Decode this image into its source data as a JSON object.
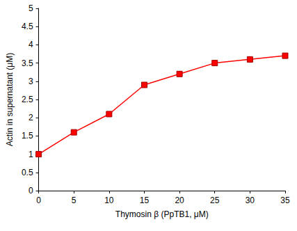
{
  "chart_data": {
    "type": "line",
    "x_label": "Thymosin β (PpTB1, μM)",
    "y_label": "Actin in supernatant (μM)",
    "x": [
      0,
      5,
      10,
      15,
      20,
      25,
      30,
      35
    ],
    "values": [
      1.0,
      1.6,
      2.1,
      2.9,
      3.2,
      3.5,
      3.6,
      3.7
    ],
    "color": "#ff0000",
    "marker": "square",
    "line_style": "solid",
    "xlim": [
      0,
      35
    ],
    "xticks": [
      0,
      5,
      10,
      15,
      20,
      25,
      30,
      35
    ],
    "ylim": [
      0,
      5
    ],
    "yticks": [
      0,
      0.5,
      1,
      1.5,
      2,
      2.5,
      3,
      3.5,
      4,
      4.5,
      5
    ],
    "grid": false
  }
}
